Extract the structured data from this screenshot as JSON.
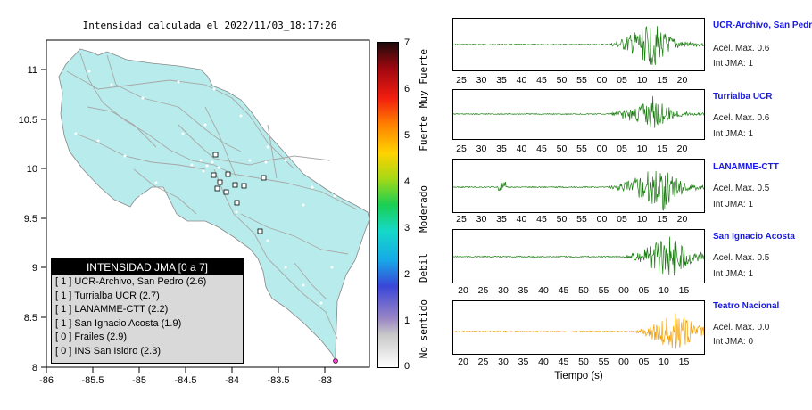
{
  "map": {
    "title": "Intensidad calculada el 2022/11/03_18:17:26",
    "x_ticks": [
      "-86",
      "-85.5",
      "-85",
      "-84.5",
      "-84",
      "-83.5",
      "-83"
    ],
    "y_ticks": [
      "11",
      "10.5",
      "10",
      "9.5",
      "9",
      "8.5",
      "8"
    ]
  },
  "colorbar": {
    "ticks": [
      "7",
      "6",
      "5",
      "4",
      "3",
      "2",
      "1",
      "0"
    ],
    "categories": [
      "Muy Fuerte",
      "Fuerte",
      "Moderado",
      "Debil",
      "No sentido"
    ]
  },
  "legend": {
    "title": "INTENSIDAD JMA [0 a 7]",
    "rows": [
      "[ 1 ] UCR-Archivo, San Pedro (2.6)",
      "[ 1 ] Turrialba UCR (2.7)",
      "[ 1 ] LANAMME-CTT (2.2)",
      "[ 1 ] San Ignacio Acosta (1.9)",
      "[ 0 ] Frailes (2.9)",
      "[ 0 ] INS San Isidro (2.3)"
    ]
  },
  "stations": [
    {
      "name": "UCR-Archivo, San Pedro",
      "acel": "Acel. Max. 0.6",
      "int": "Int JMA: 1",
      "color": "#1a7d10",
      "ticks": [
        "25",
        "30",
        "35",
        "40",
        "45",
        "50",
        "55",
        "00",
        "05",
        "10",
        "15",
        "20"
      ]
    },
    {
      "name": "Turrialba UCR",
      "acel": "Acel. Max. 0.6",
      "int": "Int JMA: 1",
      "color": "#1a7d10",
      "ticks": [
        "25",
        "30",
        "35",
        "40",
        "45",
        "50",
        "55",
        "00",
        "05",
        "10",
        "15",
        "20"
      ]
    },
    {
      "name": "LANAMME-CTT",
      "acel": "Acel. Max. 0.5",
      "int": "Int JMA: 1",
      "color": "#1a7d10",
      "ticks": [
        "25",
        "30",
        "35",
        "40",
        "45",
        "50",
        "55",
        "00",
        "05",
        "10",
        "15",
        "20"
      ]
    },
    {
      "name": "San Ignacio Acosta",
      "acel": "Acel. Max. 0.5",
      "int": "Int JMA: 1",
      "color": "#1a7d10",
      "ticks": [
        "20",
        "25",
        "30",
        "35",
        "40",
        "45",
        "50",
        "55",
        "00",
        "05",
        "10",
        "15"
      ]
    },
    {
      "name": "Teatro Nacional",
      "acel": "Acel. Max. 0.0",
      "int": "Int JMA: 0",
      "color": "#f5a000",
      "ticks": [
        "20",
        "25",
        "30",
        "35",
        "40",
        "45",
        "50",
        "55",
        "00",
        "05",
        "10",
        "15"
      ]
    }
  ],
  "time_axis_label": "Tiempo (s)"
}
